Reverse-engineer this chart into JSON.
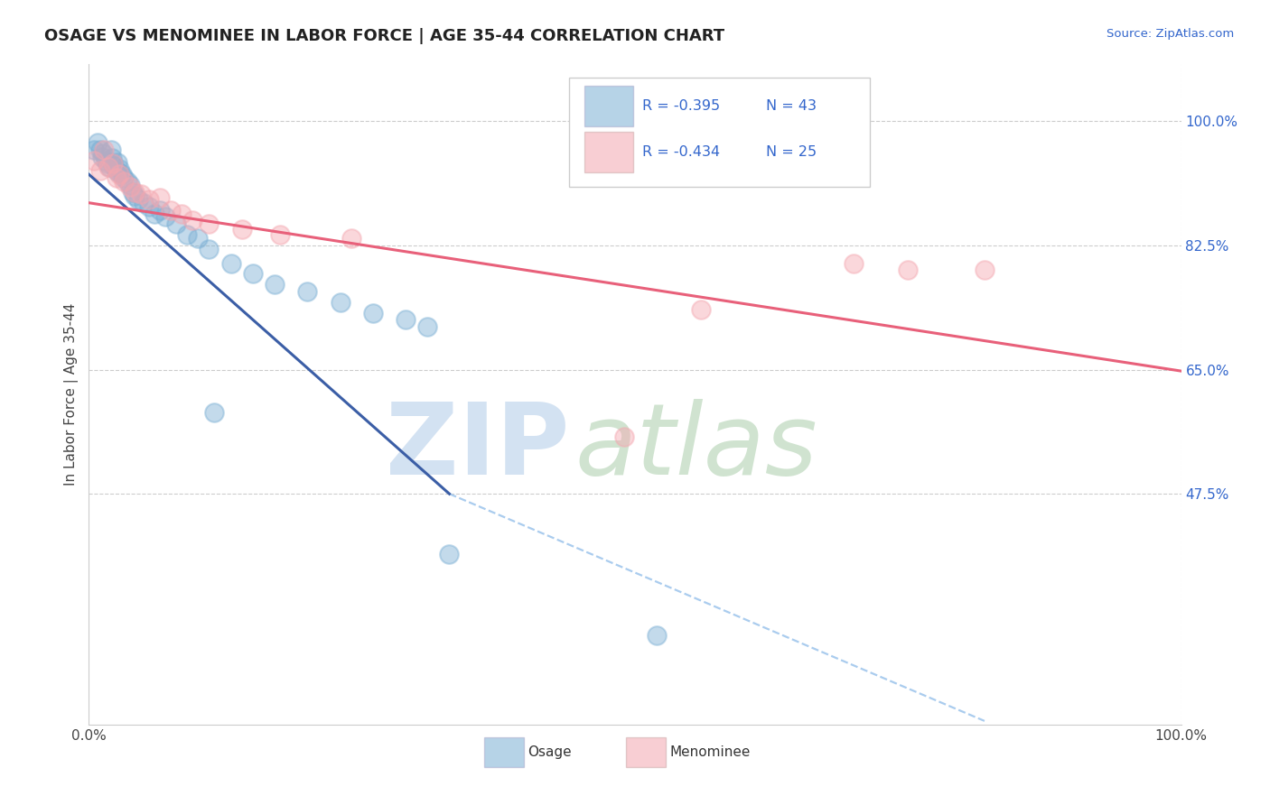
{
  "title": "OSAGE VS MENOMINEE IN LABOR FORCE | AGE 35-44 CORRELATION CHART",
  "source_text": "Source: ZipAtlas.com",
  "ylabel": "In Labor Force | Age 35-44",
  "xlim": [
    0.0,
    1.0
  ],
  "ylim": [
    0.15,
    1.08
  ],
  "yticks": [
    0.475,
    0.65,
    0.825,
    1.0
  ],
  "ytick_labels": [
    "47.5%",
    "65.0%",
    "82.5%",
    "100.0%"
  ],
  "xtick_labels": [
    "0.0%",
    "100.0%"
  ],
  "xticks": [
    0.0,
    1.0
  ],
  "legend_r_osage": "R = -0.395",
  "legend_n_osage": "N = 43",
  "legend_r_menominee": "R = -0.434",
  "legend_n_menominee": "N = 25",
  "osage_color": "#7BAFD4",
  "menominee_color": "#F4A7B0",
  "osage_line_color": "#3B5EA6",
  "menominee_line_color": "#E8607A",
  "dashed_line_color": "#AACCEE",
  "background_color": "#FFFFFF",
  "grid_color": "#CCCCCC",
  "osage_x": [
    0.005,
    0.008,
    0.01,
    0.012,
    0.013,
    0.015,
    0.017,
    0.019,
    0.02,
    0.021,
    0.022,
    0.023,
    0.025,
    0.026,
    0.027,
    0.028,
    0.03,
    0.032,
    0.035,
    0.038,
    0.04,
    0.042,
    0.045,
    0.05,
    0.055,
    0.06,
    0.065,
    0.07,
    0.08,
    0.09,
    0.1,
    0.11,
    0.13,
    0.15,
    0.17,
    0.2,
    0.23,
    0.26,
    0.29,
    0.31,
    0.115,
    0.33,
    0.52
  ],
  "osage_y": [
    0.96,
    0.97,
    0.96,
    0.95,
    0.955,
    0.945,
    0.94,
    0.935,
    0.96,
    0.948,
    0.94,
    0.937,
    0.93,
    0.942,
    0.928,
    0.933,
    0.925,
    0.92,
    0.915,
    0.91,
    0.9,
    0.895,
    0.89,
    0.885,
    0.88,
    0.87,
    0.875,
    0.865,
    0.855,
    0.84,
    0.835,
    0.82,
    0.8,
    0.785,
    0.77,
    0.76,
    0.745,
    0.73,
    0.72,
    0.71,
    0.59,
    0.39,
    0.275
  ],
  "menominee_x": [
    0.005,
    0.01,
    0.014,
    0.018,
    0.022,
    0.025,
    0.028,
    0.032,
    0.038,
    0.042,
    0.048,
    0.055,
    0.065,
    0.075,
    0.085,
    0.095,
    0.11,
    0.14,
    0.175,
    0.24,
    0.56,
    0.7,
    0.75,
    0.82,
    0.49
  ],
  "menominee_y": [
    0.945,
    0.93,
    0.96,
    0.935,
    0.94,
    0.92,
    0.925,
    0.915,
    0.908,
    0.9,
    0.898,
    0.89,
    0.892,
    0.875,
    0.87,
    0.86,
    0.855,
    0.848,
    0.84,
    0.835,
    0.735,
    0.8,
    0.79,
    0.79,
    0.555
  ],
  "blue_line_x0": 0.0,
  "blue_line_y0": 0.925,
  "blue_line_x1": 0.33,
  "blue_line_y1": 0.475,
  "dashed_line_x0": 0.33,
  "dashed_line_y0": 0.475,
  "dashed_line_x1": 0.82,
  "dashed_line_y1": 0.155,
  "pink_line_x0": 0.0,
  "pink_line_y0": 0.885,
  "pink_line_x1": 1.0,
  "pink_line_y1": 0.648
}
